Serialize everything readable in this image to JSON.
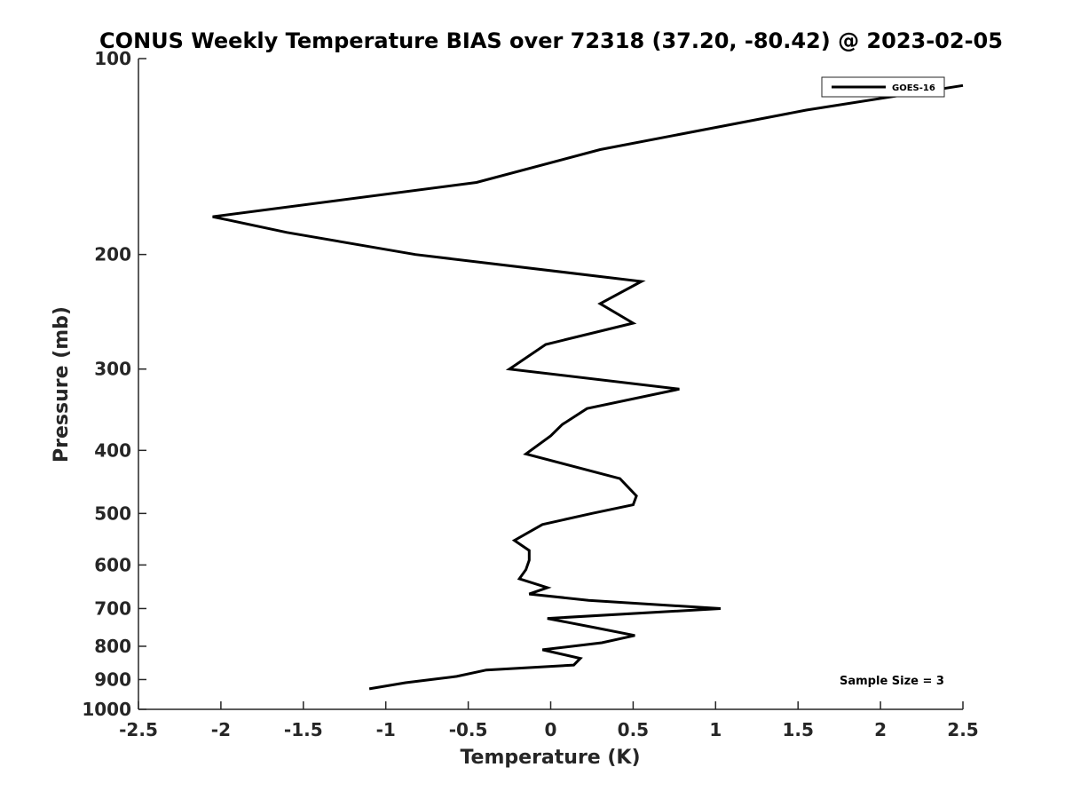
{
  "chart_data": {
    "type": "line",
    "title": "CONUS Weekly Temperature BIAS over 72318 (37.20, -80.42) @ 2023-02-05",
    "xlabel": "Temperature (K)",
    "ylabel": "Pressure (mb)",
    "xlim": [
      -2.5,
      2.5
    ],
    "ylim": [
      1000,
      100
    ],
    "yscale": "log",
    "y_reversed": true,
    "x_ticks": [
      -2.5,
      -2,
      -1.5,
      -1,
      -0.5,
      0,
      0.5,
      1,
      1.5,
      2,
      2.5
    ],
    "x_tick_labels": [
      "-2.5",
      "-2",
      "-1.5",
      "-1",
      "-0.5",
      "0",
      "0.5",
      "1",
      "1.5",
      "2",
      "2.5"
    ],
    "y_ticks": [
      100,
      200,
      300,
      400,
      500,
      600,
      700,
      800,
      900,
      1000
    ],
    "y_tick_labels": [
      "100",
      "200",
      "300",
      "400",
      "500",
      "600",
      "700",
      "800",
      "900",
      "1000"
    ],
    "grid": false,
    "legend": {
      "placement": "top-right",
      "entries": [
        "GOES-16"
      ]
    },
    "annotations": [
      "Sample Size = 3"
    ],
    "series": [
      {
        "name": "GOES-16",
        "color": "#000000",
        "x": [
          2.5,
          1.55,
          0.3,
          -0.45,
          -2.05,
          -1.6,
          -0.82,
          0.55,
          0.3,
          0.5,
          -0.03,
          -0.25,
          0.78,
          0.22,
          0.07,
          0.0,
          -0.15,
          0.42,
          0.52,
          0.5,
          0.25,
          -0.05,
          -0.22,
          -0.13,
          -0.13,
          -0.15,
          -0.19,
          -0.02,
          -0.13,
          0.23,
          1.03,
          -0.02,
          0.28,
          0.51,
          0.31,
          -0.05,
          0.18,
          0.14,
          -0.39,
          -0.57,
          -0.88,
          -1.1
        ],
        "y": [
          110,
          120,
          138,
          155,
          175,
          185,
          200,
          220,
          238,
          255,
          275,
          300,
          322,
          345,
          365,
          380,
          405,
          442,
          470,
          485,
          500,
          520,
          550,
          570,
          590,
          610,
          630,
          650,
          665,
          680,
          700,
          725,
          750,
          770,
          790,
          810,
          835,
          855,
          870,
          890,
          910,
          930
        ]
      }
    ]
  }
}
